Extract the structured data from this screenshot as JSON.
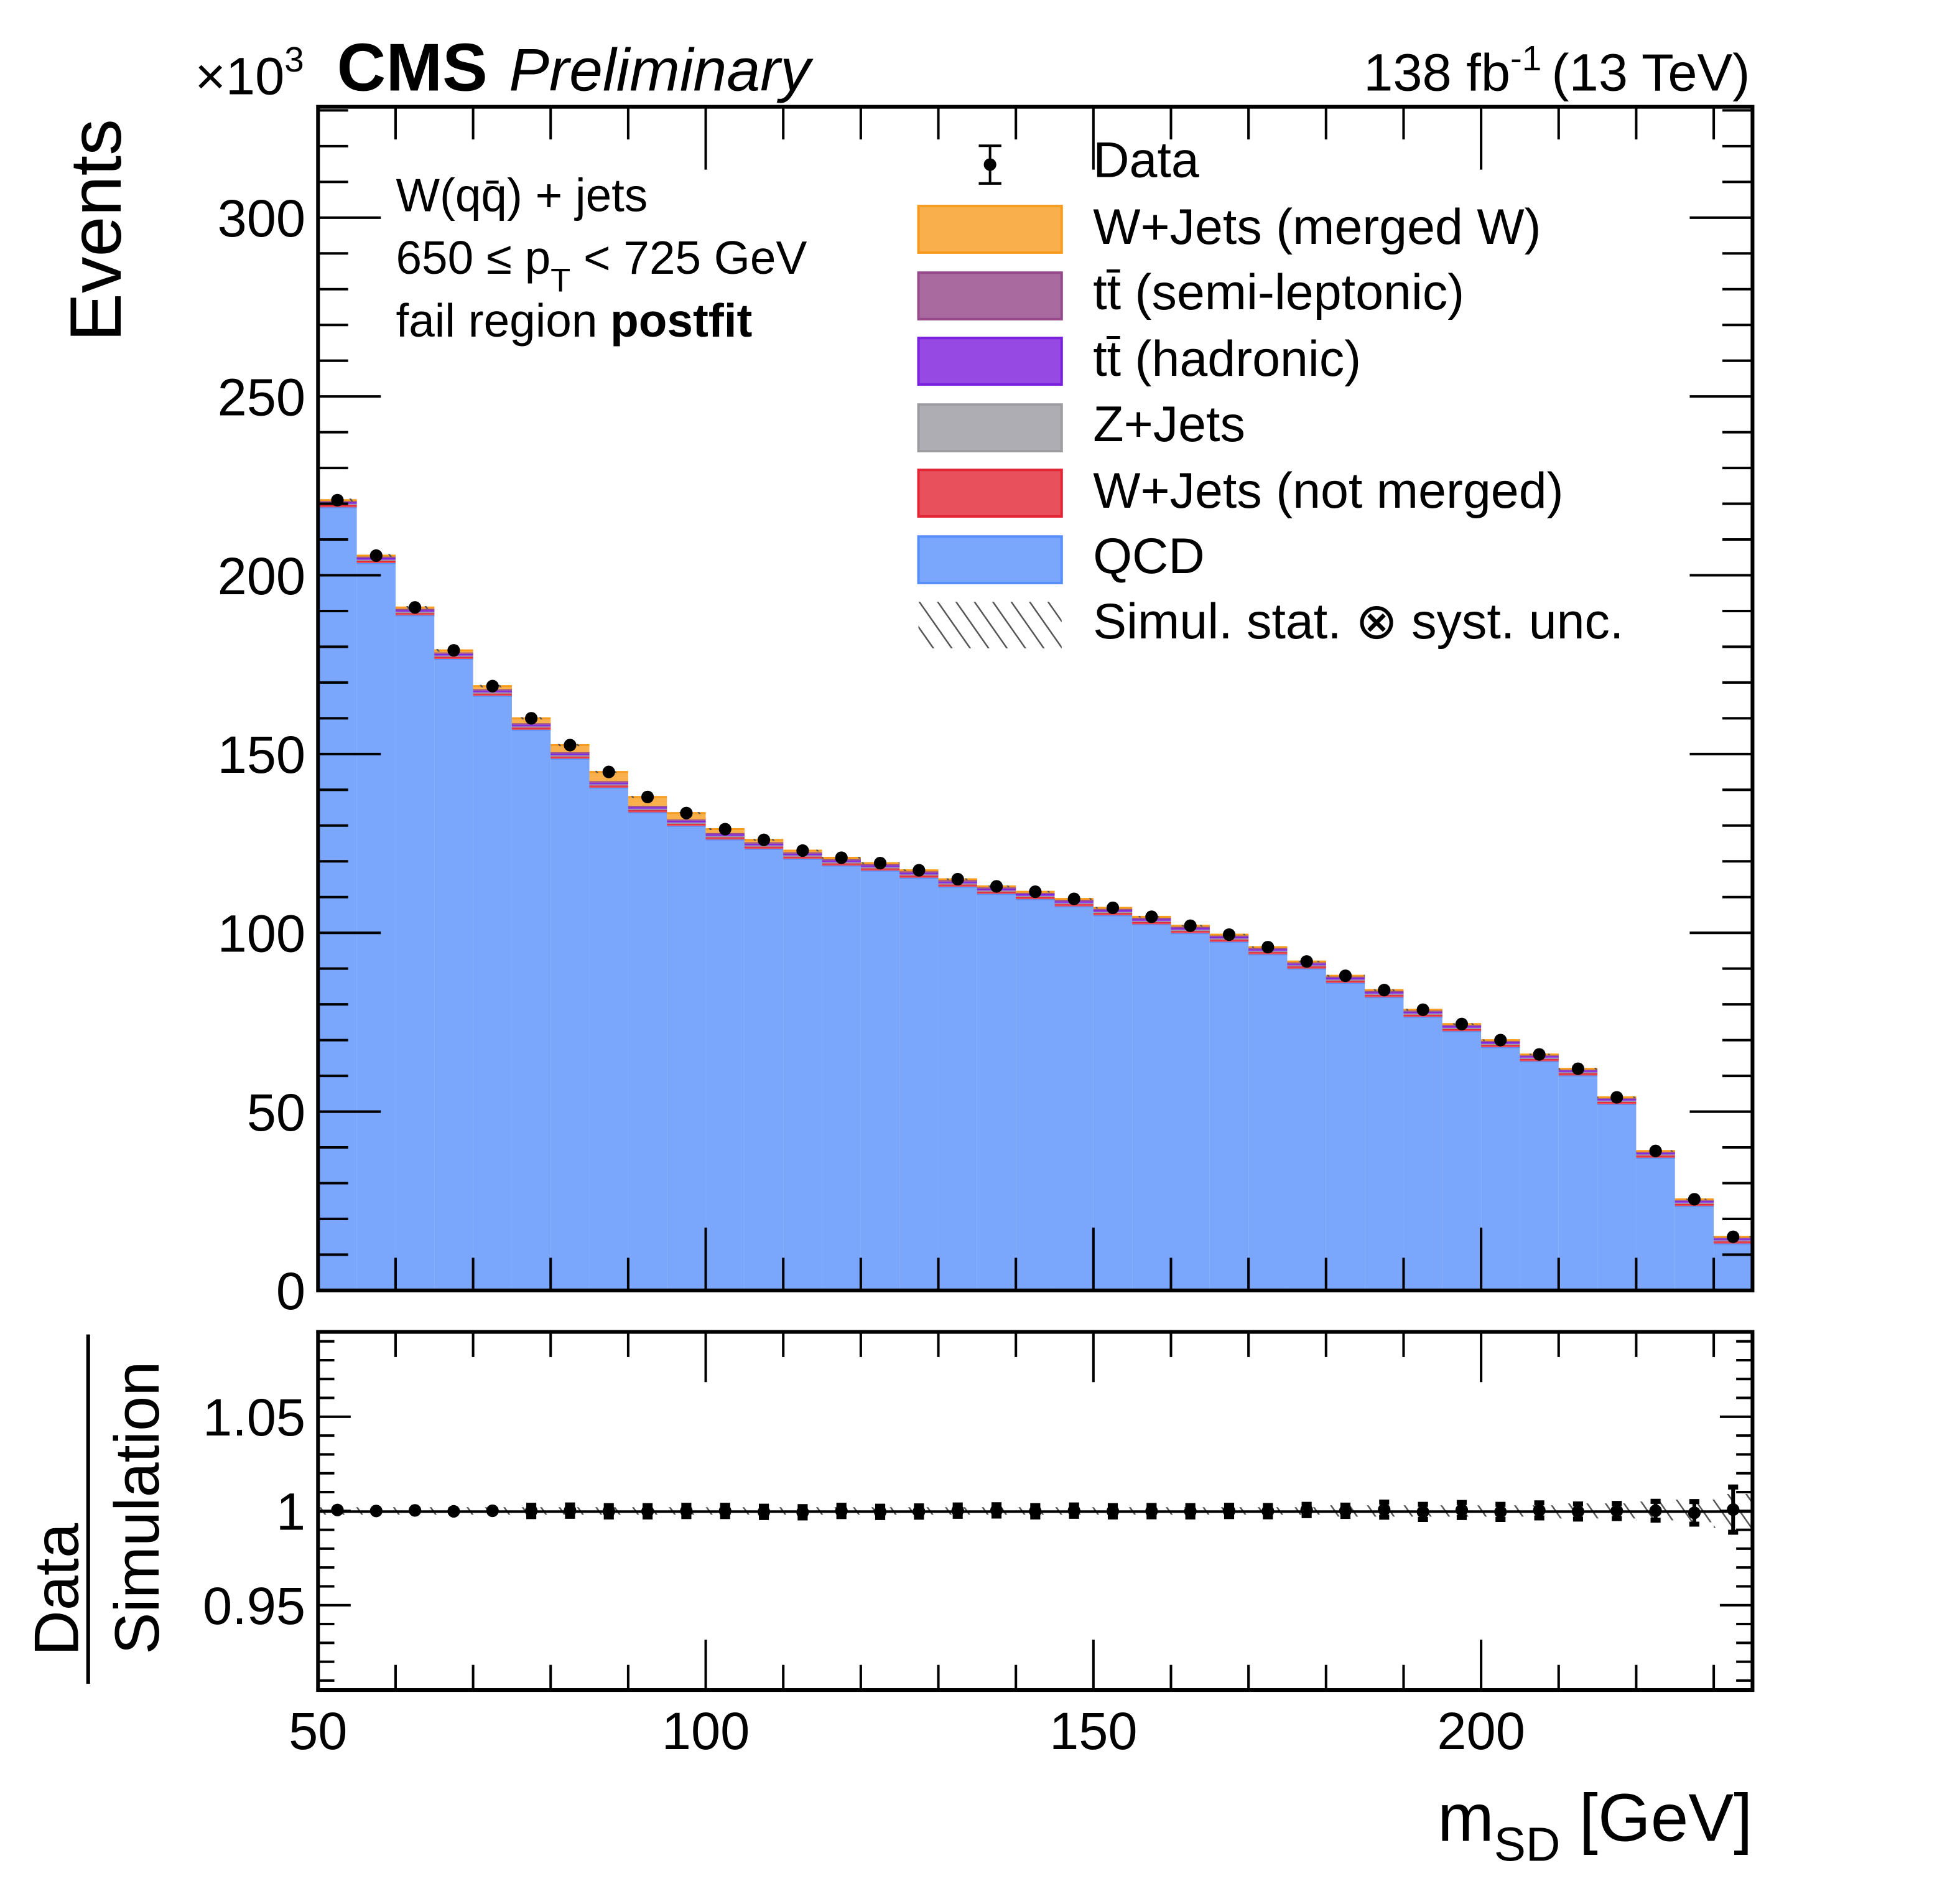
{
  "header": {
    "exponent_base": "×10",
    "exponent_power": "3",
    "experiment": "CMS",
    "status": "Preliminary",
    "lumi_prefix": "138 fb",
    "lumi_power": "-1",
    "lumi_suffix": "(13 TeV)"
  },
  "annotation": {
    "line1": "W(qq̄) + jets",
    "line2_a": "650 ≤ p",
    "line2_sub": "T",
    "line2_b": " < 725 GeV",
    "line3_a": "fail region ",
    "line3_b": "postfit"
  },
  "chart_data": [
    {
      "type": "bar",
      "panel": "main",
      "stacked": true,
      "ylabel": "Events",
      "yscale_label": "×10^3",
      "ylim": [
        0,
        331
      ],
      "xlim": [
        50,
        235
      ],
      "yticks": [
        "0",
        "50",
        "100",
        "150",
        "200",
        "250",
        "300"
      ],
      "bin_edges_start": 50,
      "bin_width": 5,
      "legend_placement": "top-right",
      "legend": [
        "Data",
        "W+Jets (merged W)",
        "tt̄ (semi-leptonic)",
        "tt̄ (hadronic)",
        "Z+Jets",
        "W+Jets (not merged)",
        "QCD",
        "Simul. stat. ⊗ syst. unc."
      ],
      "data": [
        221,
        205.5,
        191,
        179,
        169,
        160,
        152.5,
        145,
        138,
        133.5,
        129,
        126,
        123,
        121,
        119.5,
        117.5,
        115,
        113,
        111.5,
        109.5,
        107,
        104.5,
        102,
        99.5,
        96,
        92,
        88,
        84,
        78.5,
        74.5,
        70,
        66,
        62,
        54,
        39,
        25.5,
        15
      ],
      "series": [
        {
          "name": "QCD",
          "color": "#7aa6fb",
          "edge": "#5790fc",
          "values": [
            219.0,
            203.4,
            188.8,
            176.6,
            166.3,
            156.8,
            148.7,
            140.6,
            133.7,
            129.9,
            126.1,
            123.5,
            120.7,
            118.8,
            117.4,
            115.4,
            112.9,
            110.9,
            109.4,
            107.4,
            104.9,
            102.4,
            99.9,
            97.5,
            94.0,
            90.0,
            86.0,
            82.0,
            76.5,
            72.5,
            68.0,
            64.1,
            60.1,
            52.1,
            37.1,
            23.6,
            13.1
          ]
        },
        {
          "name": "W+Jets (not merged)",
          "color": "#e8505b",
          "edge": "#e42536",
          "values": [
            0.6,
            0.6,
            0.6,
            0.6,
            0.6,
            0.6,
            0.6,
            0.6,
            0.6,
            0.6,
            0.6,
            0.6,
            0.6,
            0.6,
            0.6,
            0.6,
            0.6,
            0.6,
            0.6,
            0.6,
            0.6,
            0.6,
            0.6,
            0.6,
            0.6,
            0.6,
            0.6,
            0.6,
            0.6,
            0.6,
            0.6,
            0.6,
            0.6,
            0.6,
            0.6,
            0.6,
            0.6
          ]
        },
        {
          "name": "Z+Jets",
          "color": "#adadb3",
          "edge": "#9c9ca1",
          "values": [
            0.3,
            0.3,
            0.3,
            0.3,
            0.3,
            0.3,
            0.3,
            0.3,
            0.3,
            0.3,
            0.3,
            0.3,
            0.3,
            0.3,
            0.3,
            0.3,
            0.3,
            0.3,
            0.3,
            0.3,
            0.3,
            0.3,
            0.3,
            0.3,
            0.3,
            0.3,
            0.3,
            0.3,
            0.3,
            0.3,
            0.3,
            0.3,
            0.3,
            0.3,
            0.3,
            0.3,
            0.3
          ]
        },
        {
          "name": "tt̄ (hadronic)",
          "color": "#964ae3",
          "edge": "#7a21dd",
          "values": [
            0.5,
            0.5,
            0.5,
            0.5,
            0.5,
            0.5,
            0.5,
            0.5,
            0.5,
            0.5,
            0.5,
            0.5,
            0.5,
            0.5,
            0.5,
            0.5,
            0.5,
            0.5,
            0.5,
            0.5,
            0.5,
            0.5,
            0.5,
            0.5,
            0.5,
            0.5,
            0.5,
            0.5,
            0.5,
            0.5,
            0.5,
            0.5,
            0.5,
            0.5,
            0.5,
            0.5,
            0.5
          ]
        },
        {
          "name": "tt̄ (semi-leptonic)",
          "color": "#a96b9f",
          "edge": "#964a8b",
          "values": [
            0.4,
            0.4,
            0.4,
            0.4,
            0.4,
            0.4,
            0.4,
            0.4,
            0.4,
            0.4,
            0.4,
            0.4,
            0.4,
            0.4,
            0.4,
            0.4,
            0.4,
            0.4,
            0.4,
            0.4,
            0.4,
            0.4,
            0.4,
            0.4,
            0.4,
            0.4,
            0.4,
            0.4,
            0.4,
            0.4,
            0.4,
            0.4,
            0.4,
            0.4,
            0.4,
            0.4,
            0.4
          ]
        },
        {
          "name": "W+Jets (merged W)",
          "color": "#f9af4c",
          "edge": "#f89c20",
          "values": [
            0.2,
            0.3,
            0.4,
            0.6,
            0.9,
            1.4,
            2.0,
            2.6,
            2.5,
            1.8,
            1.1,
            0.7,
            0.5,
            0.4,
            0.3,
            0.3,
            0.3,
            0.3,
            0.3,
            0.3,
            0.3,
            0.3,
            0.3,
            0.2,
            0.2,
            0.2,
            0.2,
            0.2,
            0.2,
            0.2,
            0.2,
            0.1,
            0.1,
            0.1,
            0.1,
            0.1,
            0.1
          ]
        }
      ]
    },
    {
      "type": "scatter",
      "panel": "ratio",
      "ylabel_num": "Data",
      "ylabel_den": "Simulation",
      "xlabel_main": "m",
      "xlabel_sub": "SD",
      "xlabel_unit": " [GeV]",
      "ylim": [
        0.905,
        1.095
      ],
      "xlim": [
        50,
        235
      ],
      "yticks": [
        "0.95",
        "1",
        "1.05"
      ],
      "xticks": [
        "50",
        "100",
        "150",
        "200"
      ],
      "ratio": [
        1.0005,
        1.0,
        1.0003,
        0.9998,
        1.0001,
        1.0,
        1.0002,
        0.9998,
        0.9998,
        1.0,
        1.0,
        0.9995,
        0.9993,
        1.0,
        0.9995,
        0.9997,
        1.0002,
        1.0003,
        0.9998,
        1.0002,
        0.9998,
        0.9999,
        0.9998,
        1.0,
        0.9999,
        1.0005,
        1.0001,
        1.0007,
        0.9995,
        1.0005,
        0.9995,
        1.0003,
        0.9997,
        1.0,
        1.0001,
        0.999,
        1.0007
      ],
      "ratio_err": [
        0.001,
        0.001,
        0.001,
        0.001,
        0.001,
        0.003,
        0.003,
        0.003,
        0.003,
        0.003,
        0.003,
        0.003,
        0.003,
        0.003,
        0.003,
        0.003,
        0.003,
        0.003,
        0.003,
        0.003,
        0.003,
        0.003,
        0.003,
        0.003,
        0.003,
        0.003,
        0.003,
        0.004,
        0.004,
        0.004,
        0.004,
        0.004,
        0.004,
        0.004,
        0.005,
        0.006,
        0.012
      ],
      "unc_band": [
        0.002,
        0.002,
        0.002,
        0.002,
        0.002,
        0.002,
        0.002,
        0.002,
        0.002,
        0.002,
        0.002,
        0.002,
        0.002,
        0.002,
        0.002,
        0.002,
        0.002,
        0.002,
        0.002,
        0.002,
        0.002,
        0.002,
        0.002,
        0.002,
        0.002,
        0.002,
        0.003,
        0.003,
        0.003,
        0.003,
        0.003,
        0.003,
        0.004,
        0.004,
        0.005,
        0.006,
        0.009
      ]
    }
  ]
}
